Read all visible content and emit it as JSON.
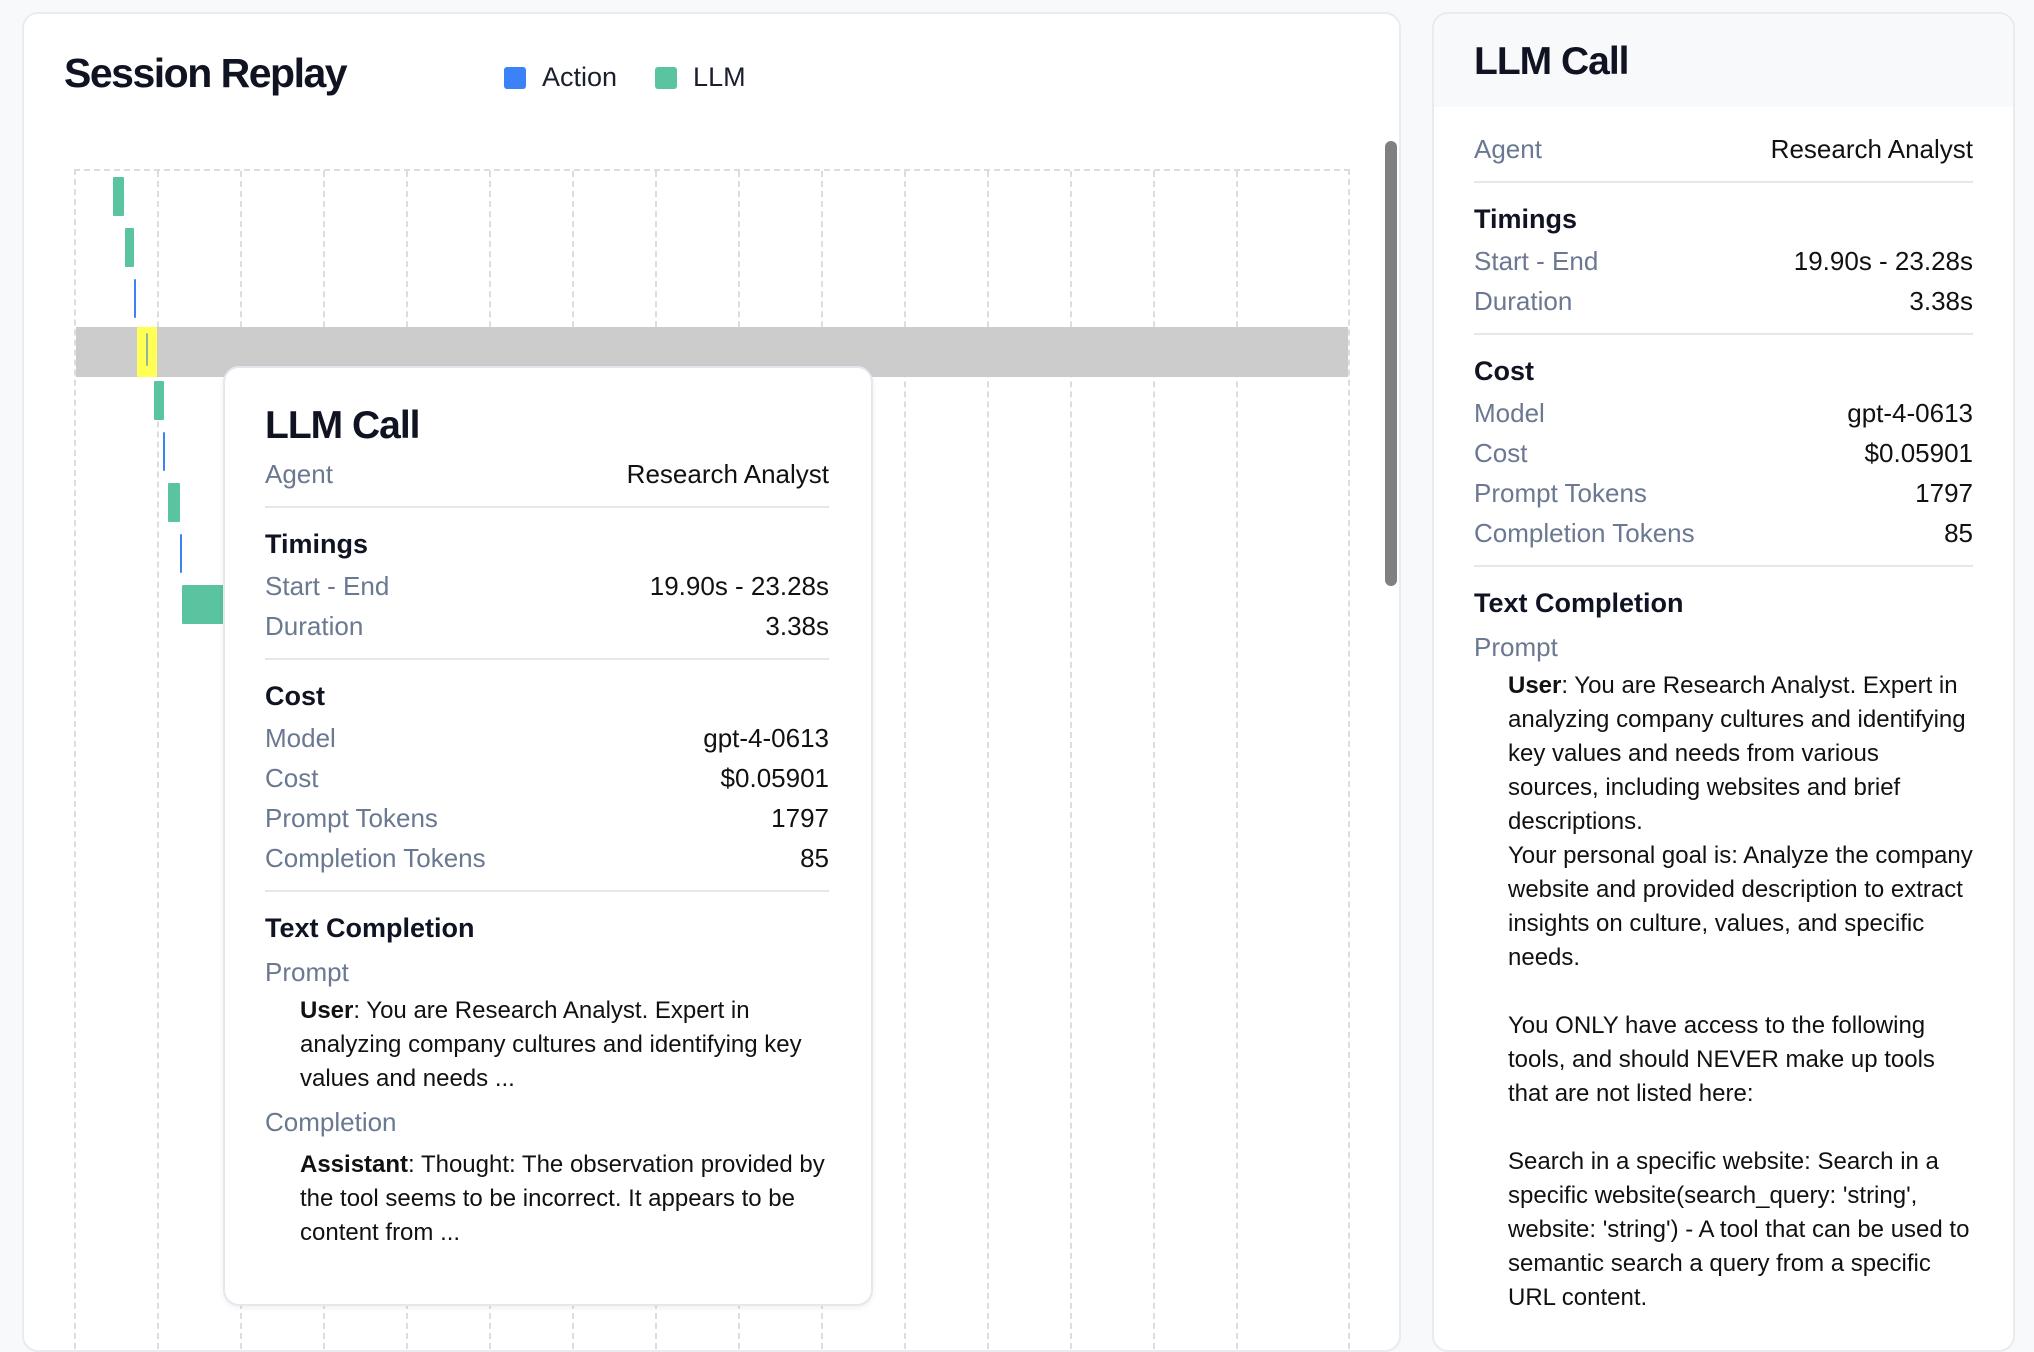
{
  "session": {
    "title": "Session Replay",
    "legend": [
      {
        "label": "Action",
        "color": "#3b82f6"
      },
      {
        "label": "LLM",
        "color": "#5ac3a0"
      }
    ]
  },
  "timeline": {
    "highlight_color": "#ffff55",
    "selected_index": 3,
    "spans_grid_units": [
      {
        "kind": "LLM",
        "start": 0.45,
        "end": 0.58
      },
      {
        "kind": "LLM",
        "start": 0.59,
        "end": 0.7
      },
      {
        "kind": "Action",
        "start": 0.7,
        "end": 0.71
      },
      {
        "kind": "LLM",
        "start": 0.84,
        "end": 0.85
      },
      {
        "kind": "LLM",
        "start": 0.94,
        "end": 1.06
      },
      {
        "kind": "Action",
        "start": 1.05,
        "end": 1.06
      },
      {
        "kind": "LLM",
        "start": 1.11,
        "end": 1.25
      },
      {
        "kind": "Action",
        "start": 1.25,
        "end": 1.26
      },
      {
        "kind": "LLM",
        "start": 1.28,
        "end": 1.78
      },
      {
        "kind": "Action",
        "start": 1.78,
        "end": 1.79
      },
      {
        "kind": "LLM",
        "start": 1.78,
        "end": 1.79
      }
    ]
  },
  "tooltip": {
    "title": "LLM Call",
    "agent_label": "Agent",
    "agent_value": "Research Analyst",
    "timings_heading": "Timings",
    "start_end_label": "Start - End",
    "start_end_value": "19.90s - 23.28s",
    "duration_label": "Duration",
    "duration_value": "3.38s",
    "cost_heading": "Cost",
    "model_label": "Model",
    "model_value": "gpt-4-0613",
    "cost_label": "Cost",
    "cost_value": "$0.05901",
    "prompt_tokens_label": "Prompt Tokens",
    "prompt_tokens_value": "1797",
    "completion_tokens_label": "Completion Tokens",
    "completion_tokens_value": "85",
    "text_completion_heading": "Text Completion",
    "prompt_label": "Prompt",
    "prompt_role": "User",
    "prompt_text": ": You are Research Analyst. Expert in analyzing company cultures and identifying key values and needs ...",
    "completion_label": "Completion",
    "completion_role": "Assistant",
    "completion_text": ": Thought: The observation provided by the tool seems to be incorrect. It appears to be content from ..."
  },
  "detail": {
    "title": "LLM Call",
    "agent_label": "Agent",
    "agent_value": "Research Analyst",
    "timings_heading": "Timings",
    "start_end_label": "Start - End",
    "start_end_value": "19.90s - 23.28s",
    "duration_label": "Duration",
    "duration_value": "3.38s",
    "cost_heading": "Cost",
    "model_label": "Model",
    "model_value": "gpt-4-0613",
    "cost_label": "Cost",
    "cost_value": "$0.05901",
    "prompt_tokens_label": "Prompt Tokens",
    "prompt_tokens_value": "1797",
    "completion_tokens_label": "Completion Tokens",
    "completion_tokens_value": "85",
    "text_completion_heading": "Text Completion",
    "prompt_label": "Prompt",
    "prompt_role": "User",
    "prompt_text": ": You are Research Analyst. Expert in analyzing company cultures and identifying key values and needs from various sources, including websites and brief descriptions.\nYour personal goal is: Analyze the company website and provided description to extract insights on culture, values, and specific needs.\n\nYou ONLY have access to the following tools, and should NEVER make up tools that are not listed here:\n\nSearch in a specific website: Search in a specific website(search_query: 'string', website: 'string') - A tool that can be used to semantic search a query from a specific URL content."
  }
}
